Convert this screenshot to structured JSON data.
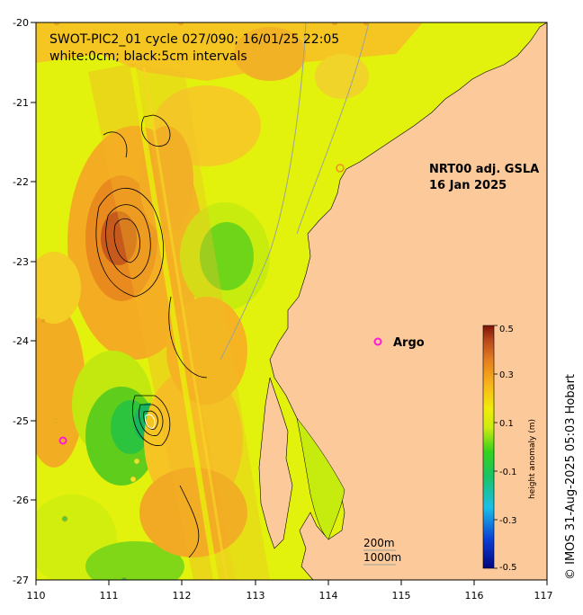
{
  "map": {
    "title_line1": "SWOT-PIC2_01 cycle 027/090; 16/01/25 22:05",
    "title_line2": "white:0cm; black:5cm intervals",
    "product_line1": "NRT00 adj. GSLA",
    "product_line2": "16 Jan 2025",
    "argo_label": "Argo",
    "depth_label_1": "200m",
    "depth_label_2": "1000m",
    "credit": "© IMOS 31-Aug-2025 05:03 Hobart",
    "lon_ticks": [
      "110",
      "111",
      "112",
      "113",
      "114",
      "115",
      "116",
      "117"
    ],
    "lat_ticks": [
      "-20",
      "-21",
      "-22",
      "-23",
      "-24",
      "-25",
      "-26",
      "-27"
    ],
    "extent": {
      "lon": [
        110,
        117
      ],
      "lat": [
        -27,
        -20
      ]
    },
    "colorbar": {
      "label": "height anomaly (m)",
      "ticks": [
        "0.5",
        "0.3",
        "0.1",
        "-0.1",
        "-0.3",
        "-0.5"
      ],
      "range": [
        -0.5,
        0.5
      ]
    },
    "colors": {
      "land": "#fcc99a",
      "ocean_base": "#e2f20d",
      "argo_marker": "#ff1ad9"
    }
  }
}
